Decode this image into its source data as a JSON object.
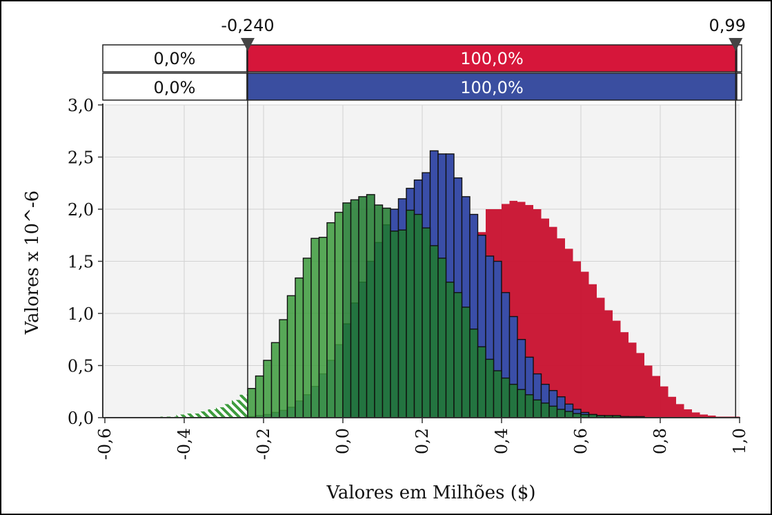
{
  "chart_data": {
    "type": "bar",
    "xlabel": "Valores em Milhões ($)",
    "ylabel": "Valores x 10^-6",
    "xlim": [
      -0.6,
      1.0
    ],
    "ylim": [
      0,
      3.0
    ],
    "x_ticks": [
      "-0,6",
      "-0,4",
      "-0,2",
      "0,0",
      "0,2",
      "0,4",
      "0,6",
      "0,8",
      "1,0"
    ],
    "y_ticks": [
      "0,0",
      "0,5",
      "1,0",
      "1,5",
      "2,0",
      "2,5",
      "3,0"
    ],
    "grid": true,
    "bin_width": 0.02,
    "markers": {
      "left": {
        "value": -0.24,
        "label": "-0,240"
      },
      "right": {
        "value": 0.99,
        "label": "0,99"
      }
    },
    "percent_bars": [
      {
        "left": "0,0%",
        "middle": "100,0%",
        "color": "#d6163a"
      },
      {
        "left": "0,0%",
        "middle": "100,0%",
        "color": "#3a4ea0"
      }
    ],
    "series": [
      {
        "color": "#c8102e",
        "x": [
          -0.08,
          -0.06,
          -0.04,
          -0.02,
          0.0,
          0.02,
          0.04,
          0.06,
          0.08,
          0.1,
          0.12,
          0.14,
          0.16,
          0.18,
          0.2,
          0.22,
          0.24,
          0.26,
          0.28,
          0.3,
          0.32,
          0.34,
          0.36,
          0.38,
          0.4,
          0.42,
          0.44,
          0.46,
          0.48,
          0.5,
          0.52,
          0.54,
          0.56,
          0.58,
          0.6,
          0.62,
          0.64,
          0.66,
          0.68,
          0.7,
          0.72,
          0.74,
          0.76,
          0.78,
          0.8,
          0.82,
          0.84,
          0.86,
          0.88,
          0.9,
          0.92,
          0.94,
          0.96,
          0.98
        ],
        "values": [
          0.01,
          0.02,
          0.02,
          0.03,
          0.05,
          0.07,
          0.1,
          0.14,
          0.19,
          0.26,
          0.34,
          0.43,
          0.54,
          0.66,
          0.8,
          0.95,
          1.1,
          1.25,
          1.4,
          1.54,
          1.66,
          1.78,
          2.0,
          2.0,
          2.05,
          2.08,
          2.07,
          2.04,
          2.0,
          1.91,
          1.83,
          1.72,
          1.62,
          1.5,
          1.4,
          1.28,
          1.15,
          1.03,
          0.93,
          0.82,
          0.72,
          0.62,
          0.5,
          0.4,
          0.3,
          0.2,
          0.13,
          0.08,
          0.05,
          0.03,
          0.02,
          0.01,
          0.01,
          0.01
        ]
      },
      {
        "color": "#3a4ea8",
        "x": [
          -0.26,
          -0.24,
          -0.22,
          -0.2,
          -0.18,
          -0.16,
          -0.14,
          -0.12,
          -0.1,
          -0.08,
          -0.06,
          -0.04,
          -0.02,
          0.0,
          0.02,
          0.04,
          0.06,
          0.08,
          0.1,
          0.12,
          0.14,
          0.16,
          0.18,
          0.2,
          0.22,
          0.24,
          0.26,
          0.28,
          0.3,
          0.32,
          0.34,
          0.36,
          0.38,
          0.4,
          0.42,
          0.44,
          0.46,
          0.48,
          0.5,
          0.52,
          0.54,
          0.56,
          0.58,
          0.6,
          0.62,
          0.64,
          0.66,
          0.68,
          0.7
        ],
        "values": [
          0.01,
          0.01,
          0.02,
          0.03,
          0.05,
          0.07,
          0.1,
          0.16,
          0.22,
          0.3,
          0.42,
          0.55,
          0.7,
          0.9,
          1.1,
          1.3,
          1.5,
          1.68,
          1.85,
          2.0,
          2.1,
          2.2,
          2.28,
          2.35,
          2.56,
          2.53,
          2.53,
          2.3,
          2.12,
          1.95,
          1.75,
          1.55,
          1.5,
          1.2,
          0.97,
          0.75,
          0.58,
          0.42,
          0.32,
          0.26,
          0.2,
          0.13,
          0.08,
          0.05,
          0.03,
          0.02,
          0.01,
          0.01,
          0.01
        ]
      },
      {
        "color": "#1f7a2e",
        "x": [
          -0.46,
          -0.44,
          -0.42,
          -0.4,
          -0.38,
          -0.36,
          -0.34,
          -0.32,
          -0.3,
          -0.28,
          -0.26,
          -0.24,
          -0.22,
          -0.2,
          -0.18,
          -0.16,
          -0.14,
          -0.12,
          -0.1,
          -0.08,
          -0.06,
          -0.04,
          -0.02,
          0.0,
          0.02,
          0.04,
          0.06,
          0.08,
          0.1,
          0.12,
          0.14,
          0.16,
          0.18,
          0.2,
          0.22,
          0.24,
          0.26,
          0.28,
          0.3,
          0.32,
          0.34,
          0.36,
          0.38,
          0.4,
          0.42,
          0.44,
          0.46,
          0.48,
          0.5,
          0.52,
          0.54,
          0.56,
          0.58,
          0.6,
          0.62,
          0.64,
          0.66,
          0.68,
          0.7,
          0.72,
          0.74
        ],
        "values": [
          0.01,
          0.01,
          0.03,
          0.04,
          0.04,
          0.06,
          0.08,
          0.1,
          0.13,
          0.17,
          0.22,
          0.28,
          0.4,
          0.55,
          0.72,
          0.94,
          1.17,
          1.34,
          1.53,
          1.72,
          1.73,
          1.87,
          1.97,
          2.06,
          2.09,
          2.12,
          2.14,
          2.04,
          2.01,
          1.79,
          1.8,
          1.99,
          1.95,
          1.82,
          1.65,
          1.53,
          1.3,
          1.2,
          1.06,
          0.85,
          0.68,
          0.56,
          0.45,
          0.38,
          0.32,
          0.27,
          0.22,
          0.17,
          0.14,
          0.11,
          0.08,
          0.06,
          0.04,
          0.03,
          0.03,
          0.02,
          0.02,
          0.02,
          0.01,
          0.01,
          0.01
        ]
      }
    ]
  }
}
